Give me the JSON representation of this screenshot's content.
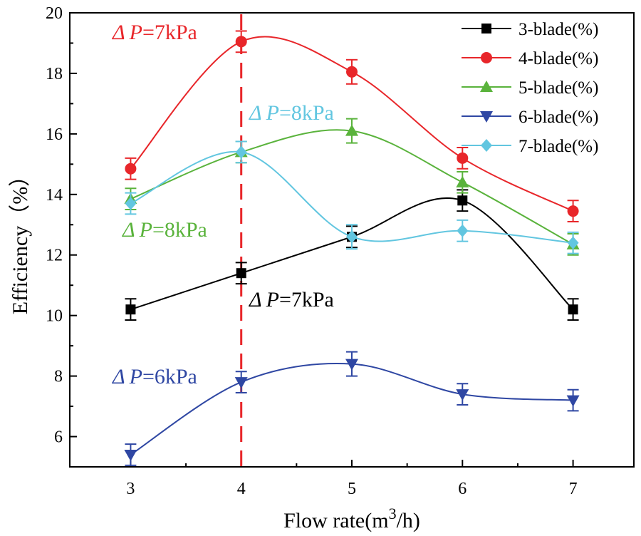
{
  "chart_data": {
    "type": "line",
    "xlabel": "Flow rate(m³/h)",
    "xlabel_parts": {
      "pre": "Flow rate(m",
      "sup": "3",
      "post": "/h)"
    },
    "ylabel": "Efficiency（%）",
    "xlim": [
      2.45,
      7.55
    ],
    "ylim": [
      5,
      20
    ],
    "x_ticks": [
      3,
      4,
      5,
      6,
      7
    ],
    "y_ticks": [
      6,
      8,
      10,
      12,
      14,
      16,
      18,
      20
    ],
    "grid": false,
    "legend_position": "top-right",
    "reference_line": {
      "x": 4,
      "color": "#e8262a",
      "style": "dashed"
    },
    "series": [
      {
        "name": "3-blade(%)",
        "color": "#000000",
        "marker": "square",
        "x": [
          3,
          4,
          5,
          6,
          7
        ],
        "values": [
          10.2,
          11.4,
          12.6,
          13.8,
          10.2
        ],
        "errors": [
          0.35,
          0.35,
          0.35,
          0.35,
          0.35
        ]
      },
      {
        "name": "4-blade(%)",
        "color": "#e8262a",
        "marker": "circle",
        "x": [
          3,
          4,
          5,
          6,
          7
        ],
        "values": [
          14.85,
          19.05,
          18.05,
          15.2,
          13.45
        ],
        "errors": [
          0.35,
          0.35,
          0.4,
          0.35,
          0.35
        ]
      },
      {
        "name": "5-blade(%)",
        "color": "#5ab33c",
        "marker": "triangle-up",
        "x": [
          3,
          4,
          5,
          6,
          7
        ],
        "values": [
          13.85,
          15.4,
          16.1,
          14.4,
          12.35
        ],
        "errors": [
          0.35,
          0.35,
          0.4,
          0.35,
          0.35
        ]
      },
      {
        "name": "6-blade(%)",
        "color": "#2f47a3",
        "marker": "triangle-down",
        "x": [
          3,
          4,
          5,
          6,
          7
        ],
        "values": [
          5.4,
          7.8,
          8.4,
          7.4,
          7.2
        ],
        "errors": [
          0.35,
          0.35,
          0.4,
          0.35,
          0.35
        ]
      },
      {
        "name": "7-blade(%)",
        "color": "#62c6e0",
        "marker": "diamond",
        "x": [
          3,
          4,
          5,
          6,
          7
        ],
        "values": [
          13.7,
          15.4,
          12.6,
          12.8,
          12.4
        ],
        "errors": [
          0.35,
          0.35,
          0.4,
          0.35,
          0.35
        ]
      }
    ],
    "annotations": [
      {
        "series": 1,
        "delta": "Δ",
        "p": "P",
        "rest": "=7kPa",
        "color": "#e8262a"
      },
      {
        "series": 4,
        "delta": "Δ",
        "p": "P",
        "rest": "=8kPa",
        "color": "#62c6e0"
      },
      {
        "series": 2,
        "delta": "Δ",
        "p": "P",
        "rest": "=8kPa",
        "color": "#5ab33c"
      },
      {
        "series": 0,
        "delta": "Δ",
        "p": "P",
        "rest": "=7kPa",
        "color": "#000000"
      },
      {
        "series": 3,
        "delta": "Δ",
        "p": "P",
        "rest": "=6kPa",
        "color": "#2f47a3"
      }
    ]
  }
}
